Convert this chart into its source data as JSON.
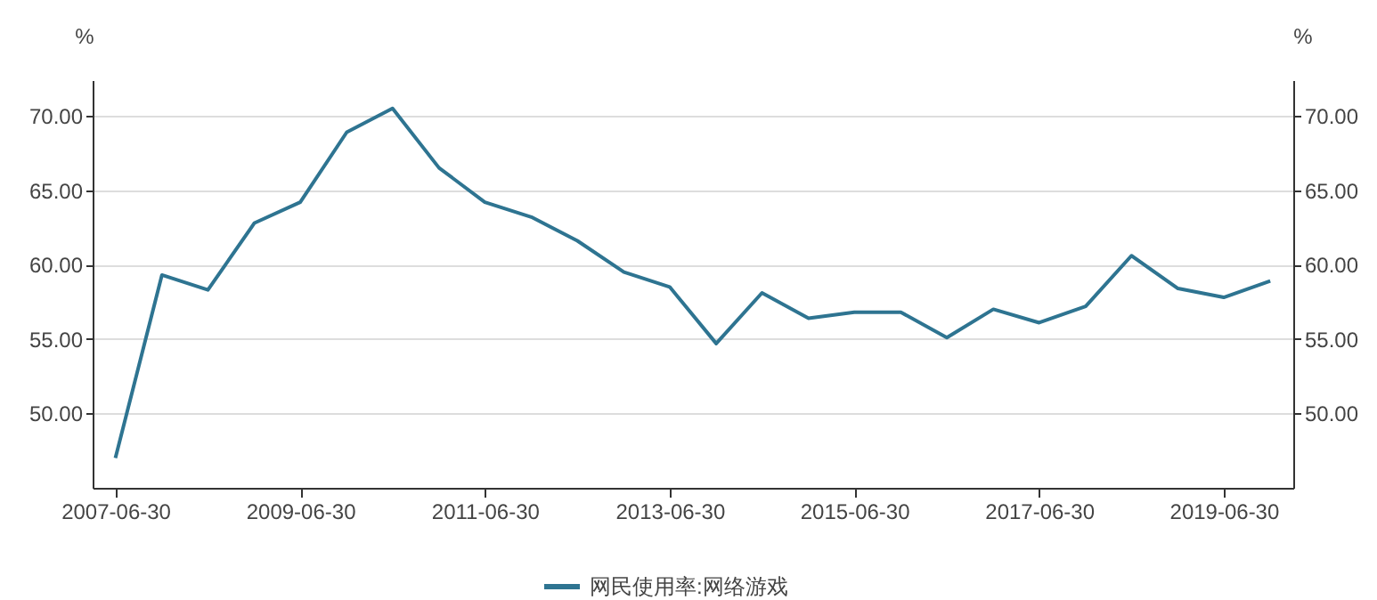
{
  "chart_data": {
    "type": "line",
    "ylabel": "%",
    "y2label": "%",
    "x": [
      "2007-06-30",
      "2007-12-31",
      "2008-06-30",
      "2008-12-31",
      "2009-06-30",
      "2009-12-31",
      "2010-06-30",
      "2010-12-31",
      "2011-06-30",
      "2011-12-31",
      "2012-06-30",
      "2012-12-31",
      "2013-06-30",
      "2013-12-31",
      "2014-06-30",
      "2014-12-31",
      "2015-06-30",
      "2015-12-31",
      "2016-06-30",
      "2016-12-31",
      "2017-06-30",
      "2017-12-31",
      "2018-06-30",
      "2018-12-31",
      "2019-06-30",
      "2019-12-31"
    ],
    "series": [
      {
        "name": "网民使用率:网络游戏",
        "color": "#2e7491",
        "values": [
          47.0,
          59.3,
          58.3,
          62.8,
          64.2,
          68.9,
          70.5,
          66.5,
          64.2,
          63.2,
          61.6,
          59.5,
          58.5,
          54.7,
          58.1,
          56.4,
          56.8,
          56.8,
          55.1,
          57.0,
          56.1,
          57.2,
          60.6,
          58.4,
          57.8,
          58.9
        ]
      }
    ],
    "xlim": [
      "2007-04-01",
      "2020-03-31"
    ],
    "xticks": [
      {
        "value": "2007-06-30",
        "label": "2007-06-30"
      },
      {
        "value": "2009-06-30",
        "label": "2009-06-30"
      },
      {
        "value": "2011-06-30",
        "label": "2011-06-30"
      },
      {
        "value": "2013-06-30",
        "label": "2013-06-30"
      },
      {
        "value": "2015-06-30",
        "label": "2015-06-30"
      },
      {
        "value": "2017-06-30",
        "label": "2017-06-30"
      },
      {
        "value": "2019-06-30",
        "label": "2019-06-30"
      }
    ],
    "ylim": [
      45,
      72.4
    ],
    "yticks": [
      {
        "value": 50,
        "label": "50.00"
      },
      {
        "value": 55,
        "label": "55.00"
      },
      {
        "value": 60,
        "label": "60.00"
      },
      {
        "value": 65,
        "label": "65.00"
      },
      {
        "value": 70,
        "label": "70.00"
      }
    ],
    "y2lim": [
      45,
      72.4
    ],
    "y2ticks": [
      {
        "value": 50,
        "label": "50.00"
      },
      {
        "value": 55,
        "label": "55.00"
      },
      {
        "value": 60,
        "label": "60.00"
      },
      {
        "value": 65,
        "label": "65.00"
      },
      {
        "value": 70,
        "label": "70.00"
      }
    ],
    "grid": "y",
    "legend": "bottom",
    "marker": "none",
    "line_style": "solid"
  }
}
